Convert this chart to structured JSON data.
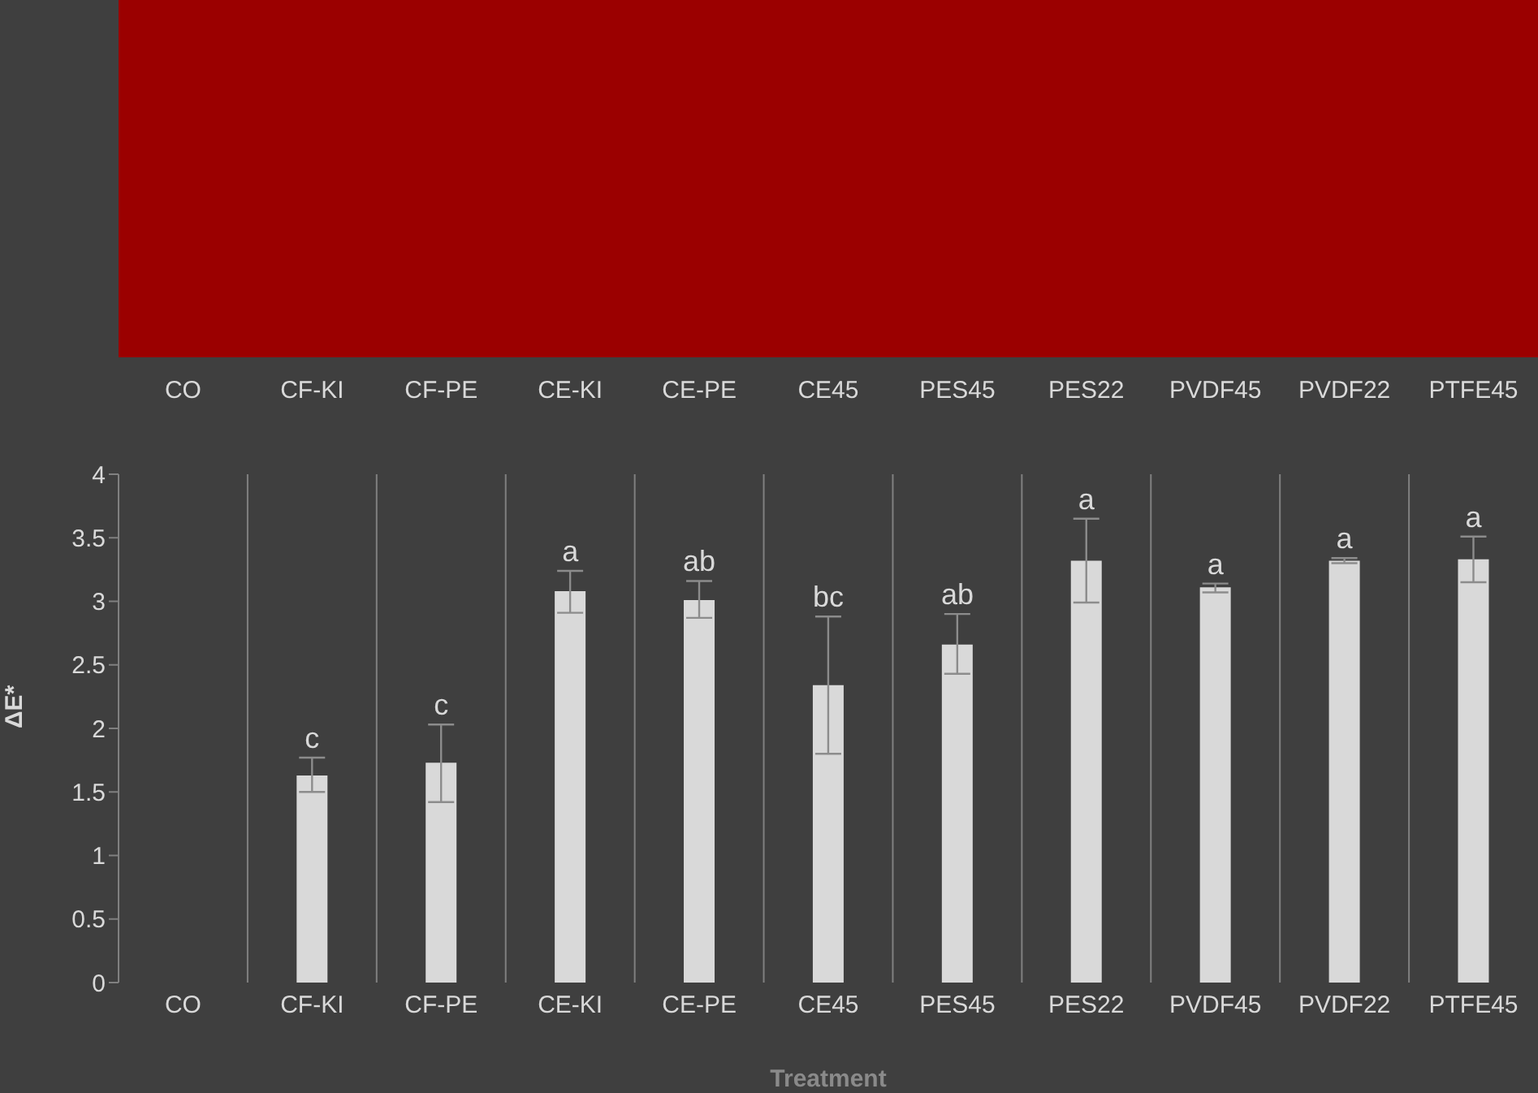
{
  "chart_data": [
    {
      "type": "other",
      "categories": [
        "CO",
        "CF-KI",
        "CF-PE",
        "CE-KI",
        "CE-PE",
        "CE45",
        "PES45",
        "PES22",
        "PVDF45",
        "PVDF22",
        "PTFE45"
      ]
    },
    {
      "type": "bar",
      "xlabel": "Treatment",
      "ylabel": "ΔE*",
      "categories": [
        "CO",
        "CF-KI",
        "CF-PE",
        "CE-KI",
        "CE-PE",
        "CE45",
        "PES45",
        "PES22",
        "PVDF45",
        "PVDF22",
        "PTFE45"
      ],
      "values": [
        null,
        1.63,
        1.73,
        3.08,
        3.01,
        2.34,
        2.66,
        3.32,
        3.11,
        3.32,
        3.33
      ],
      "errors": [
        null,
        [
          1.5,
          1.77
        ],
        [
          1.42,
          2.03
        ],
        [
          2.91,
          3.24
        ],
        [
          2.87,
          3.16
        ],
        [
          1.8,
          2.88
        ],
        [
          2.43,
          2.9
        ],
        [
          2.99,
          3.65
        ],
        [
          3.07,
          3.14
        ],
        [
          3.3,
          3.34
        ],
        [
          3.15,
          3.51
        ]
      ],
      "color": "#d9d9d9",
      "ylim": [
        0,
        4
      ],
      "yticks": [
        0,
        0.5,
        1,
        1.5,
        2,
        2.5,
        3,
        3.5,
        4
      ],
      "grid": "x",
      "annotations": [
        {
          "text": "c",
          "x": "CF-KI",
          "y": 1.77
        },
        {
          "text": "c",
          "x": "CF-PE",
          "y": 2.03
        },
        {
          "text": "a",
          "x": "CE-KI",
          "y": 3.24
        },
        {
          "text": "ab",
          "x": "CE-PE",
          "y": 3.16
        },
        {
          "text": "bc",
          "x": "CE45",
          "y": 2.88
        },
        {
          "text": "ab",
          "x": "PES45",
          "y": 2.9
        },
        {
          "text": "a",
          "x": "PES22",
          "y": 3.65
        },
        {
          "text": "a",
          "x": "PVDF45",
          "y": 3.14
        },
        {
          "text": "a",
          "x": "PVDF22",
          "y": 3.34
        },
        {
          "text": "a",
          "x": "PTFE45",
          "y": 3.51
        }
      ]
    }
  ]
}
